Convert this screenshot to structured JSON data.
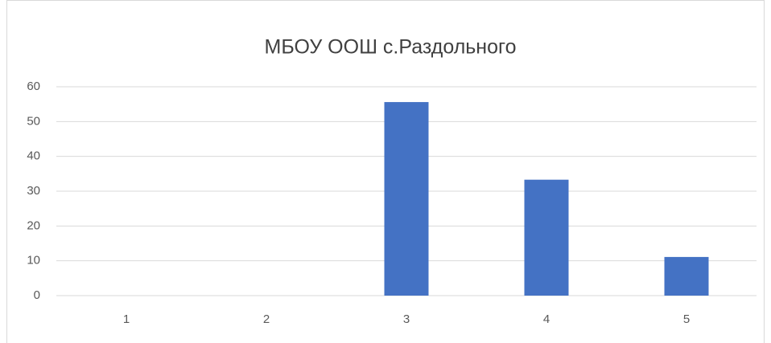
{
  "chart_data": {
    "type": "bar",
    "title": "МБОУ ООШ с.Раздольного",
    "categories": [
      "1",
      "2",
      "3",
      "4",
      "5"
    ],
    "values": [
      0,
      0,
      55.6,
      33.3,
      11.1
    ],
    "color": "#4472c4",
    "ylim": [
      0,
      60
    ],
    "yticks": [
      0,
      10,
      20,
      30,
      40,
      50,
      60
    ],
    "grid": true
  }
}
